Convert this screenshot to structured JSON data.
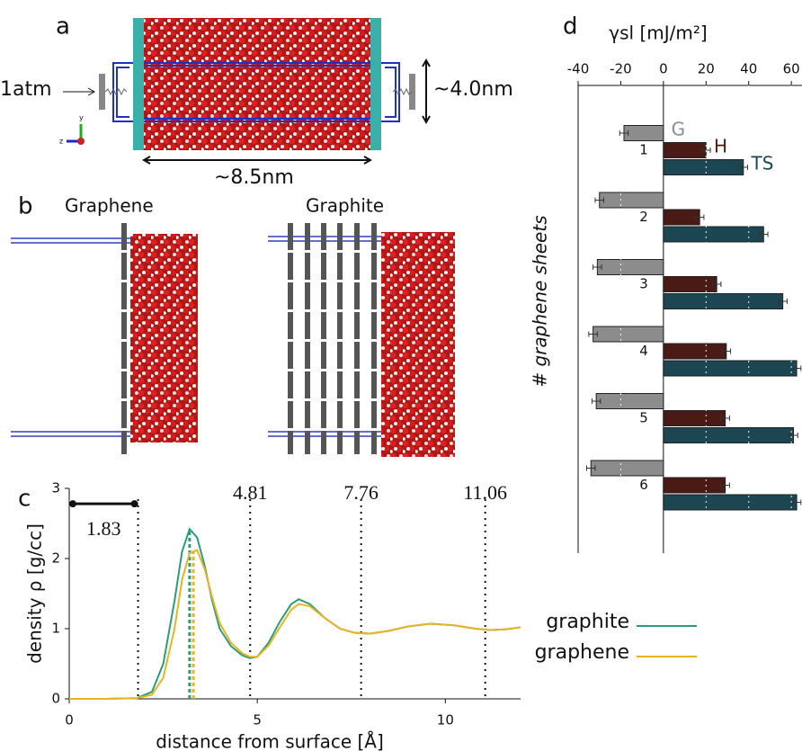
{
  "panels": {
    "a": {
      "label": "a",
      "pressure": "1atm",
      "height": "~4.0nm",
      "width": "~8.5nm"
    },
    "b": {
      "label": "b",
      "left": "Graphene",
      "right": "Graphite"
    },
    "c": {
      "label": "c"
    },
    "d": {
      "label": "d"
    }
  },
  "chart_data": [
    {
      "type": "line",
      "xlabel": "distance from surface [Å]",
      "ylabel": "density ρ [g/cc]",
      "xlim": [
        0,
        12
      ],
      "ylim": [
        0,
        3
      ],
      "xticks": [
        0,
        5,
        10
      ],
      "yticks": [
        0,
        1,
        2,
        3
      ],
      "x": [
        0,
        1,
        1.8,
        2.2,
        2.5,
        2.8,
        3.0,
        3.2,
        3.4,
        3.6,
        3.8,
        4.0,
        4.3,
        4.6,
        4.8,
        5.0,
        5.3,
        5.6,
        5.9,
        6.1,
        6.4,
        6.8,
        7.2,
        7.6,
        8.0,
        8.5,
        9.0,
        9.6,
        10.2,
        10.8,
        11.2,
        11.6,
        12
      ],
      "series": [
        {
          "name": "graphite",
          "color": "#2a9d78",
          "peak": 3.2,
          "values": [
            0,
            0,
            0.01,
            0.1,
            0.5,
            1.4,
            2.1,
            2.42,
            2.3,
            1.9,
            1.4,
            1.0,
            0.75,
            0.62,
            0.58,
            0.6,
            0.8,
            1.1,
            1.35,
            1.42,
            1.35,
            1.15,
            1.0,
            0.94,
            0.93,
            0.97,
            1.03,
            1.07,
            1.05,
            1.0,
            0.98,
            0.99,
            1.02
          ]
        },
        {
          "name": "graphene",
          "color": "#e8b424",
          "peak": 3.3,
          "values": [
            0,
            0,
            0.01,
            0.06,
            0.3,
            1.0,
            1.7,
            2.08,
            2.12,
            1.85,
            1.45,
            1.08,
            0.8,
            0.65,
            0.6,
            0.6,
            0.76,
            1.02,
            1.27,
            1.35,
            1.32,
            1.15,
            1.0,
            0.94,
            0.93,
            0.97,
            1.03,
            1.07,
            1.05,
            1.0,
            0.98,
            0.99,
            1.02
          ]
        }
      ],
      "vlines": [
        1.83,
        4.81,
        7.76,
        11.06
      ],
      "legend": "right"
    },
    {
      "type": "barh",
      "xlabel": "γsl [mJ/m²]",
      "ylabel": "# graphene sheets",
      "xlim": [
        -40,
        65
      ],
      "xticks": [
        -40,
        -20,
        0,
        20,
        40,
        60
      ],
      "categories": [
        "1",
        "2",
        "3",
        "4",
        "5",
        "6"
      ],
      "grid": true,
      "series": [
        {
          "name": "G",
          "color": "#8c8c8c",
          "values": [
            -18.5,
            -30,
            -31,
            -33,
            -31.5,
            -34
          ],
          "errors": [
            2,
            2,
            2,
            2,
            2,
            2
          ]
        },
        {
          "name": "H",
          "color": "#4a1a14",
          "values": [
            20,
            17,
            25,
            29.5,
            29,
            29
          ],
          "errors": [
            2,
            2,
            2,
            2,
            2,
            2
          ]
        },
        {
          "name": "TS",
          "color": "#1b4652",
          "values": [
            37.5,
            47,
            56,
            62.5,
            61,
            62.5
          ],
          "errors": [
            2,
            2,
            2,
            2,
            2,
            2
          ]
        }
      ]
    }
  ]
}
